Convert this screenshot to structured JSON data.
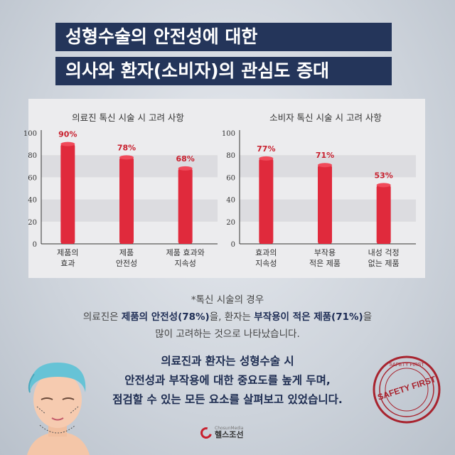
{
  "title_lines": [
    "성형수술의 안전성에 대한",
    "의사와 환자(소비자)의 관심도 증대"
  ],
  "chart_data": [
    {
      "type": "bar",
      "title": "의료진 톡신 시술 시 고려 사항",
      "categories": [
        "제품의|효과",
        "제품|안전성",
        "제품 효과와|지속성"
      ],
      "values": [
        90,
        78,
        68
      ],
      "value_labels": [
        "90%",
        "78%",
        "68%"
      ],
      "ylim": [
        0,
        100
      ],
      "yticks": [
        "0",
        "20",
        "40",
        "60",
        "80",
        "100"
      ],
      "bar_color": "#e02a3c",
      "label_color": "#c8202e"
    },
    {
      "type": "bar",
      "title": "소비자 톡신 시술 시 고려 사항",
      "categories": [
        "효과의|지속성",
        "부작용|적은 제품",
        "내성 걱정|없는 제품"
      ],
      "values": [
        77,
        71,
        53
      ],
      "value_labels": [
        "77%",
        "71%",
        "53%"
      ],
      "ylim": [
        0,
        100
      ],
      "yticks": [
        "0",
        "20",
        "40",
        "60",
        "80",
        "100"
      ],
      "bar_color": "#e02a3c",
      "label_color": "#c8202e"
    }
  ],
  "note": {
    "line1": "*톡신 시술의 경우",
    "line2_a": "의료진은 ",
    "line2_b": "제품의 안전성(78%)",
    "line2_c": "을, 환자는 ",
    "line2_d": "부작용이 적은 제품(71%)",
    "line2_e": "을",
    "line3": "많이 고려하는 것으로 나타났습니다."
  },
  "bottom_text": [
    "의료진과 환자는 성형수술 시",
    "안전성과 부작용에 대한 중요도를 높게 두며,",
    "점검할 수 있는 모든 요소를 살펴보고 있었습니다."
  ],
  "stamp": {
    "outer": "SAFETY FIRST",
    "inner": "SAFETY FIRST",
    "color": "#a8232e"
  },
  "logo": {
    "small": "ChosunMedia",
    "big": "헬스조선"
  }
}
